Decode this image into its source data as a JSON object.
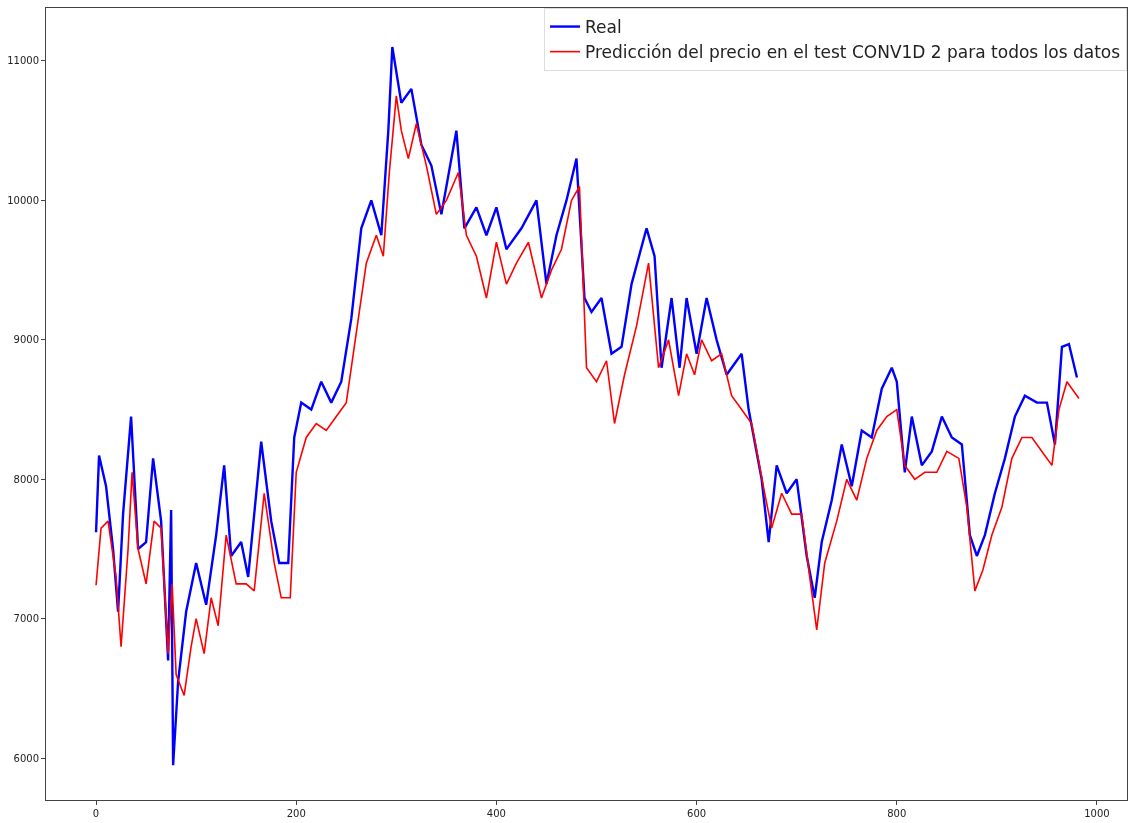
{
  "chart_data": {
    "type": "line",
    "legend": "top right",
    "grid": false,
    "marker": "none",
    "line_style": "solid",
    "xlim": [
      -50,
      1030
    ],
    "ylim": [
      5700,
      11380
    ],
    "xticks": [
      0,
      200,
      400,
      600,
      800,
      1000
    ],
    "yticks": [
      6000,
      7000,
      8000,
      9000,
      10000,
      11000
    ],
    "series": [
      {
        "name": "Real",
        "color": "#0000ff",
        "x": [
          0,
          3,
          10,
          17,
          22,
          27,
          35,
          42,
          50,
          57,
          65,
          72,
          75,
          77,
          82,
          90,
          100,
          110,
          120,
          128,
          135,
          145,
          152,
          165,
          175,
          183,
          192,
          198,
          205,
          215,
          225,
          235,
          245,
          255,
          265,
          275,
          285,
          292,
          296,
          305,
          315,
          325,
          335,
          345,
          360,
          368,
          380,
          390,
          400,
          410,
          425,
          440,
          450,
          460,
          470,
          480,
          488,
          495,
          505,
          515,
          525,
          535,
          550,
          558,
          565,
          575,
          583,
          590,
          600,
          610,
          620,
          630,
          645,
          652,
          665,
          672,
          680,
          690,
          700,
          710,
          718,
          725,
          735,
          745,
          755,
          765,
          775,
          785,
          795,
          800,
          808,
          815,
          825,
          835,
          845,
          855,
          865,
          873,
          880,
          888,
          898,
          908,
          918,
          928,
          940,
          950,
          958,
          965,
          972,
          980
        ],
        "values": [
          7620,
          8170,
          7950,
          7500,
          7050,
          7750,
          8450,
          7500,
          7550,
          8150,
          7700,
          6700,
          7780,
          5950,
          6550,
          7050,
          7400,
          7100,
          7600,
          8100,
          7450,
          7550,
          7300,
          8270,
          7700,
          7400,
          7400,
          8300,
          8550,
          8500,
          8700,
          8550,
          8700,
          9150,
          9800,
          10000,
          9750,
          10500,
          11100,
          10700,
          10800,
          10400,
          10250,
          9900,
          10500,
          9800,
          9950,
          9750,
          9950,
          9650,
          9800,
          10000,
          9400,
          9750,
          10000,
          10300,
          9300,
          9200,
          9300,
          8900,
          8950,
          9400,
          9800,
          9600,
          8800,
          9300,
          8800,
          9300,
          8900,
          9300,
          9000,
          8750,
          8900,
          8500,
          8000,
          7550,
          8100,
          7900,
          8000,
          7450,
          7150,
          7550,
          7850,
          8250,
          7950,
          8350,
          8300,
          8650,
          8800,
          8700,
          8050,
          8450,
          8100,
          8200,
          8450,
          8300,
          8250,
          7600,
          7450,
          7600,
          7900,
          8150,
          8450,
          8600,
          8550,
          8550,
          8250,
          8950,
          8970,
          8730
        ]
      },
      {
        "name": "Predicción del precio en el test CONV1D 2 para todos los datos",
        "color": "#ff0000",
        "x": [
          0,
          5,
          12,
          20,
          25,
          32,
          36,
          42,
          50,
          58,
          65,
          72,
          76,
          80,
          88,
          95,
          100,
          108,
          115,
          122,
          130,
          140,
          150,
          158,
          168,
          178,
          185,
          194,
          200,
          210,
          220,
          230,
          240,
          250,
          260,
          270,
          280,
          287,
          293,
          300,
          305,
          312,
          320,
          330,
          340,
          350,
          362,
          370,
          380,
          390,
          400,
          410,
          420,
          432,
          445,
          455,
          465,
          475,
          483,
          490,
          500,
          510,
          518,
          528,
          540,
          552,
          562,
          572,
          582,
          590,
          598,
          605,
          615,
          625,
          635,
          645,
          655,
          668,
          675,
          685,
          695,
          705,
          713,
          720,
          728,
          740,
          750,
          760,
          770,
          780,
          790,
          800,
          808,
          818,
          828,
          840,
          850,
          862,
          870,
          878,
          886,
          895,
          905,
          915,
          925,
          935,
          945,
          955,
          962,
          970,
          982
        ],
        "values": [
          7240,
          7650,
          7700,
          7300,
          6800,
          7500,
          8050,
          7500,
          7250,
          7700,
          7650,
          6750,
          7250,
          6600,
          6450,
          6800,
          7000,
          6750,
          7150,
          6950,
          7600,
          7250,
          7250,
          7200,
          7900,
          7400,
          7150,
          7150,
          8050,
          8300,
          8400,
          8350,
          8450,
          8550,
          9050,
          9550,
          9750,
          9600,
          10200,
          10750,
          10500,
          10300,
          10550,
          10250,
          9900,
          10000,
          10200,
          9750,
          9600,
          9300,
          9700,
          9400,
          9550,
          9700,
          9300,
          9500,
          9650,
          10000,
          10100,
          8800,
          8700,
          8850,
          8400,
          8750,
          9100,
          9550,
          8800,
          9000,
          8600,
          8900,
          8750,
          9000,
          8850,
          8900,
          8600,
          8500,
          8400,
          7900,
          7650,
          7900,
          7750,
          7750,
          7300,
          6920,
          7400,
          7700,
          8000,
          7850,
          8150,
          8350,
          8450,
          8500,
          8100,
          8000,
          8050,
          8050,
          8200,
          8150,
          7800,
          7200,
          7350,
          7600,
          7800,
          8150,
          8300,
          8300,
          8200,
          8100,
          8500,
          8700,
          8580
        ]
      }
    ]
  }
}
